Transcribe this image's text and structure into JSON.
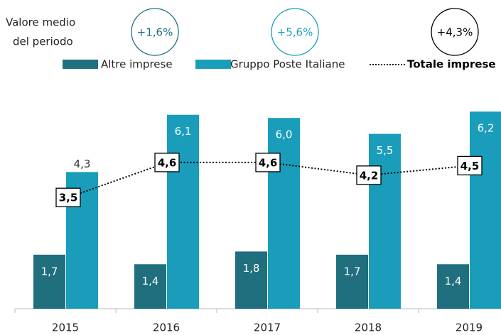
{
  "chart_data": {
    "type": "bar_line",
    "note_lines": [
      "Valore medio",
      "del periodo"
    ],
    "categories": [
      "2015",
      "2016",
      "2017",
      "2018",
      "2019"
    ],
    "series": [
      {
        "name": "Altre imprese",
        "color": "#1f6f7e",
        "kind": "bar",
        "average_label": "+1,6%",
        "values": [
          1.7,
          1.4,
          1.8,
          1.7,
          1.4
        ],
        "value_labels": [
          "1,7",
          "1,4",
          "1,8",
          "1,7",
          "1,4"
        ]
      },
      {
        "name": "Gruppo Poste Italiane",
        "color": "#1a9dbb",
        "kind": "bar",
        "average_label": "+5,6%",
        "values": [
          4.3,
          6.1,
          6.0,
          5.5,
          6.2
        ],
        "value_labels": [
          "4,3",
          "6,1",
          "6,0",
          "5,5",
          "6,2"
        ]
      },
      {
        "name": "Totale imprese",
        "color": "#000000",
        "kind": "line",
        "average_label": "+4,3%",
        "values": [
          3.5,
          4.6,
          4.6,
          4.2,
          4.5
        ],
        "value_labels": [
          "3,5",
          "4,6",
          "4,6",
          "4,2",
          "4,5"
        ]
      }
    ]
  }
}
